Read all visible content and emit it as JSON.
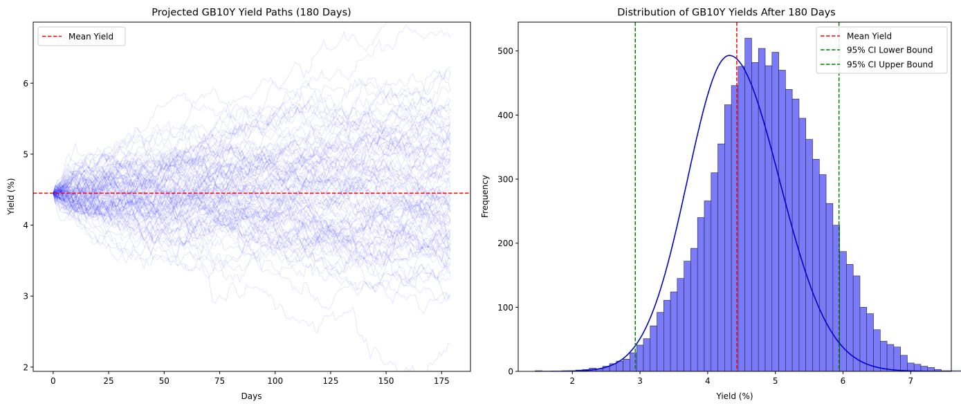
{
  "chart_data": [
    {
      "type": "line",
      "title": "Projected GB10Y Yield Paths (180 Days)",
      "xlabel": "Days",
      "ylabel": "Yield (%)",
      "xlim": [
        -9,
        188
      ],
      "ylim": [
        1.94,
        6.86
      ],
      "xticks": [
        "0",
        "25",
        "50",
        "75",
        "100",
        "125",
        "150",
        "175"
      ],
      "yticks": [
        "2",
        "3",
        "4",
        "5",
        "6"
      ],
      "n_paths_shown": 100,
      "start_yield": 4.45,
      "days": 180,
      "daily_vol": 0.06,
      "path_color": "#0000ff",
      "path_opacity": 0.1,
      "mean_yield": 4.45,
      "mean_line_color": "#ff0000",
      "legend": [
        {
          "label": "Mean Yield",
          "color": "#ff0000",
          "style": "dashed"
        }
      ],
      "legend_position": "top-left",
      "grid": false
    },
    {
      "type": "bar",
      "subtype": "histogram",
      "title": "Distribution of GB10Y Yields After 180 Days",
      "xlabel": "Yield (%)",
      "ylabel": "Frequency",
      "xlim": [
        1.2,
        7.6
      ],
      "ylim": [
        0,
        545
      ],
      "xticks": [
        "2",
        "3",
        "4",
        "5",
        "6",
        "7"
      ],
      "yticks": [
        "0",
        "100",
        "200",
        "300",
        "400",
        "500"
      ],
      "bin_start": 1.45,
      "bin_width": 0.1,
      "values": [
        1,
        0,
        0,
        0,
        1,
        1,
        2,
        3,
        5,
        4,
        8,
        12,
        16,
        19,
        29,
        41,
        51,
        71,
        92,
        111,
        124,
        145,
        172,
        192,
        240,
        266,
        310,
        355,
        416,
        446,
        476,
        520,
        482,
        504,
        477,
        498,
        470,
        440,
        425,
        395,
        362,
        331,
        307,
        262,
        228,
        187,
        167,
        149,
        100,
        90,
        65,
        47,
        42,
        38,
        25,
        13,
        11,
        8,
        6,
        3,
        1,
        1,
        1,
        0,
        1
      ],
      "kde": {
        "peak": 493,
        "mean": 4.32,
        "sigma_left": 0.62,
        "sigma_right": 0.74,
        "color": "#0000cc"
      },
      "bar_fill": "#7b7bf7",
      "bar_edge": "#22224a",
      "vlines": [
        {
          "label": "Mean Yield",
          "x": 4.43,
          "color": "#ff0000"
        },
        {
          "label": "95% CI Lower Bound",
          "x": 2.93,
          "color": "#008000"
        },
        {
          "label": "95% CI Upper Bound",
          "x": 5.94,
          "color": "#008000"
        }
      ],
      "legend_position": "top-right",
      "grid": false
    }
  ]
}
